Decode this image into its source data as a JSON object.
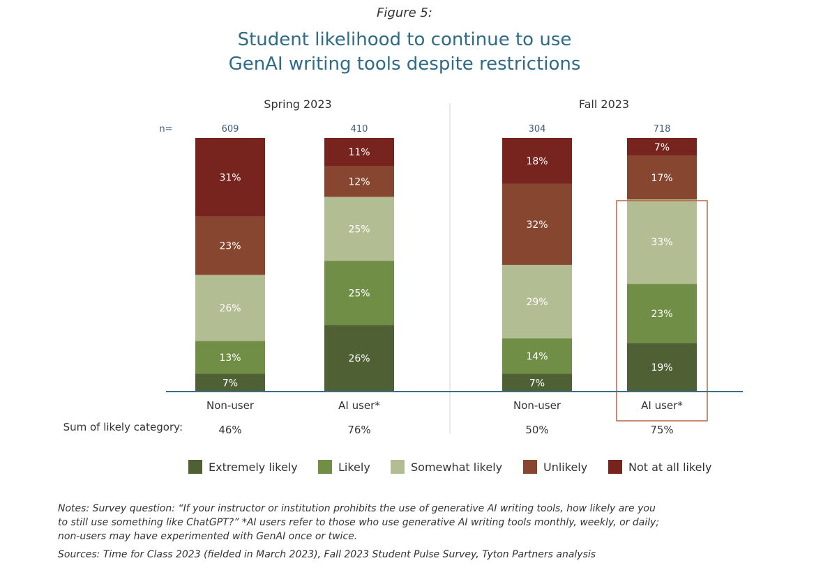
{
  "figure_label": "Figure 5:",
  "title_lines": [
    "Student likelihood to continue to use",
    "GenAI writing tools despite restrictions"
  ],
  "sum_label": "Sum of likely category:",
  "n_label": "n=",
  "colors": {
    "Extremely likely": "#4f6134",
    "Likely": "#718e47",
    "Somewhat likely": "#b2bd93",
    "Unlikely": "#874630",
    "Not at all likely": "#77241f",
    "axis": "#3a6e86",
    "highlight": "#b8653e",
    "n_text": "#3d5a80"
  },
  "chart_data": {
    "type": "bar",
    "stacked": true,
    "series_order": [
      "Extremely likely",
      "Likely",
      "Somewhat likely",
      "Unlikely",
      "Not at all likely"
    ],
    "groups": [
      {
        "name": "Spring 2023",
        "bars": [
          {
            "category": "Non-user",
            "n": "609",
            "values": [
              7,
              13,
              26,
              23,
              31
            ],
            "labels": [
              "7%",
              "13%",
              "26%",
              "23%",
              "31%"
            ],
            "sum": "46%",
            "highlight": false
          },
          {
            "category": "AI user*",
            "n": "410",
            "values": [
              26,
              25,
              25,
              12,
              11
            ],
            "labels": [
              "26%",
              "25%",
              "25%",
              "12%",
              "11%"
            ],
            "sum": "76%",
            "highlight": false
          }
        ]
      },
      {
        "name": "Fall 2023",
        "bars": [
          {
            "category": "Non-user",
            "n": "304",
            "values": [
              7,
              14,
              29,
              32,
              18
            ],
            "labels": [
              "7%",
              "14%",
              "29%",
              "32%",
              "18%"
            ],
            "sum": "50%",
            "highlight": false
          },
          {
            "category": "AI user*",
            "n": "718",
            "values": [
              19,
              23,
              33,
              17,
              7
            ],
            "labels": [
              "19%",
              "23%",
              "33%",
              "17%",
              "7%"
            ],
            "sum": "75%",
            "highlight": true
          }
        ]
      }
    ],
    "legend": [
      "Extremely likely",
      "Likely",
      "Somewhat likely",
      "Unlikely",
      "Not at all likely"
    ],
    "legend_position": "bottom",
    "ylim": [
      0,
      100
    ],
    "grid": false
  },
  "notes": {
    "lines": [
      "Notes: Survey question: “If your instructor or institution prohibits the use of generative AI writing tools, how likely are you",
      "to still use something like ChatGPT?” *AI users refer to those who use generative AI writing tools monthly, weekly, or daily;",
      "non-users may have experimented with GenAI once or twice."
    ],
    "sources": "Sources: Time for Class 2023 (fielded in March 2023), Fall 2023 Student Pulse Survey, Tyton Partners analysis"
  }
}
